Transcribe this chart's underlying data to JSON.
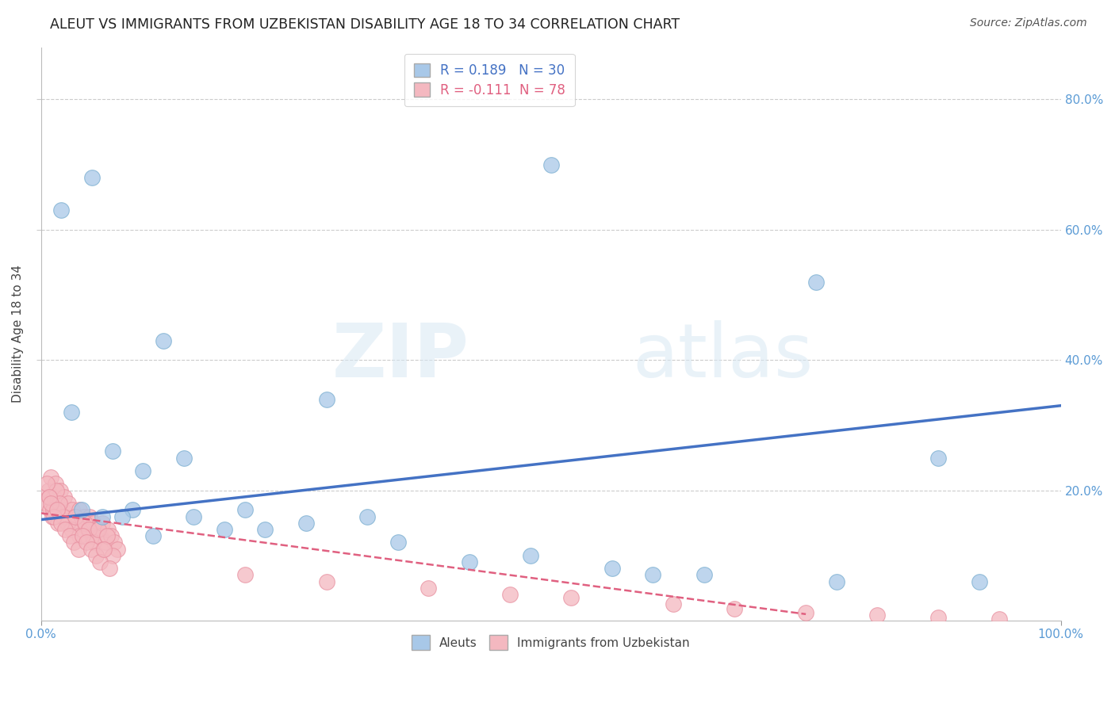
{
  "title": "ALEUT VS IMMIGRANTS FROM UZBEKISTAN DISABILITY AGE 18 TO 34 CORRELATION CHART",
  "source": "Source: ZipAtlas.com",
  "ylabel": "Disability Age 18 to 34",
  "x_min": 0.0,
  "x_max": 1.0,
  "y_min": 0.0,
  "y_max": 0.88,
  "yticks": [
    0.2,
    0.4,
    0.6,
    0.8
  ],
  "ytick_labels": [
    "20.0%",
    "40.0%",
    "60.0%",
    "80.0%"
  ],
  "xticks": [
    0.0,
    1.0
  ],
  "xtick_labels": [
    "0.0%",
    "100.0%"
  ],
  "blue_R": 0.189,
  "blue_N": 30,
  "pink_R": -0.111,
  "pink_N": 78,
  "blue_color": "#a8c8e8",
  "pink_color": "#f4b8c0",
  "blue_edge_color": "#7aaed0",
  "pink_edge_color": "#e890a0",
  "blue_line_color": "#4472c4",
  "pink_line_color": "#e06080",
  "legend_label_blue": "Aleuts",
  "legend_label_pink": "Immigrants from Uzbekistan",
  "watermark_zip": "ZIP",
  "watermark_atlas": "atlas",
  "blue_scatter_x": [
    0.05,
    0.5,
    0.02,
    0.76,
    0.12,
    0.28,
    0.03,
    0.07,
    0.1,
    0.14,
    0.2,
    0.26,
    0.06,
    0.09,
    0.15,
    0.22,
    0.32,
    0.42,
    0.48,
    0.56,
    0.65,
    0.78,
    0.88,
    0.92,
    0.04,
    0.08,
    0.11,
    0.18,
    0.35,
    0.6
  ],
  "blue_scatter_y": [
    0.68,
    0.7,
    0.63,
    0.52,
    0.43,
    0.34,
    0.32,
    0.26,
    0.23,
    0.25,
    0.17,
    0.15,
    0.16,
    0.17,
    0.16,
    0.14,
    0.16,
    0.09,
    0.1,
    0.08,
    0.07,
    0.06,
    0.25,
    0.06,
    0.17,
    0.16,
    0.13,
    0.14,
    0.12,
    0.07
  ],
  "pink_scatter_x": [
    0.005,
    0.007,
    0.009,
    0.01,
    0.011,
    0.013,
    0.014,
    0.016,
    0.017,
    0.019,
    0.021,
    0.023,
    0.025,
    0.027,
    0.029,
    0.031,
    0.033,
    0.036,
    0.038,
    0.04,
    0.042,
    0.044,
    0.046,
    0.048,
    0.05,
    0.052,
    0.055,
    0.058,
    0.06,
    0.063,
    0.066,
    0.069,
    0.072,
    0.075,
    0.008,
    0.012,
    0.015,
    0.018,
    0.022,
    0.026,
    0.03,
    0.034,
    0.038,
    0.043,
    0.047,
    0.052,
    0.056,
    0.061,
    0.065,
    0.07,
    0.006,
    0.008,
    0.01,
    0.013,
    0.016,
    0.02,
    0.024,
    0.028,
    0.032,
    0.037,
    0.041,
    0.045,
    0.049,
    0.054,
    0.058,
    0.062,
    0.067,
    0.2,
    0.28,
    0.38,
    0.46,
    0.52,
    0.62,
    0.68,
    0.75,
    0.82,
    0.88,
    0.94
  ],
  "pink_scatter_y": [
    0.18,
    0.2,
    0.17,
    0.22,
    0.16,
    0.19,
    0.21,
    0.18,
    0.15,
    0.2,
    0.17,
    0.19,
    0.16,
    0.18,
    0.15,
    0.17,
    0.16,
    0.15,
    0.17,
    0.14,
    0.16,
    0.15,
    0.14,
    0.16,
    0.13,
    0.15,
    0.14,
    0.13,
    0.15,
    0.12,
    0.14,
    0.13,
    0.12,
    0.11,
    0.19,
    0.17,
    0.2,
    0.18,
    0.16,
    0.15,
    0.14,
    0.16,
    0.13,
    0.15,
    0.14,
    0.12,
    0.14,
    0.11,
    0.13,
    0.1,
    0.21,
    0.19,
    0.18,
    0.16,
    0.17,
    0.15,
    0.14,
    0.13,
    0.12,
    0.11,
    0.13,
    0.12,
    0.11,
    0.1,
    0.09,
    0.11,
    0.08,
    0.07,
    0.06,
    0.05,
    0.04,
    0.035,
    0.025,
    0.018,
    0.012,
    0.008,
    0.005,
    0.002
  ],
  "blue_trend_x": [
    0.0,
    1.0
  ],
  "blue_trend_y": [
    0.155,
    0.33
  ],
  "pink_trend_x": [
    0.0,
    0.75
  ],
  "pink_trend_y": [
    0.165,
    0.01
  ]
}
